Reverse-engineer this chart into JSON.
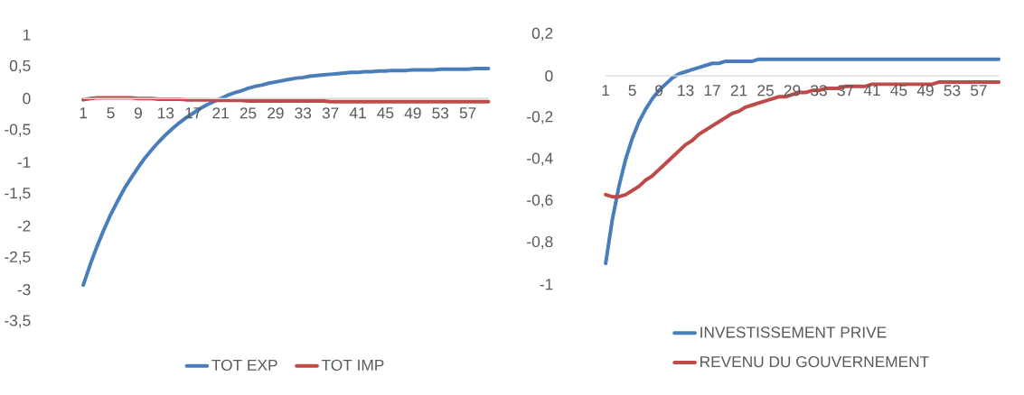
{
  "chart_data": [
    {
      "type": "line",
      "categories": [
        "1",
        null,
        null,
        null,
        "5",
        null,
        null,
        null,
        "9",
        null,
        null,
        null,
        "13",
        null,
        null,
        null,
        "17",
        null,
        null,
        null,
        "21",
        null,
        null,
        null,
        "25",
        null,
        null,
        null,
        "29",
        null,
        null,
        null,
        "33",
        null,
        null,
        null,
        "37",
        null,
        null,
        null,
        "41",
        null,
        null,
        null,
        "45",
        null,
        null,
        null,
        "49",
        null,
        null,
        null,
        "53",
        null,
        null,
        null,
        "57",
        null,
        null,
        null
      ],
      "ylim": [
        -3.5,
        1
      ],
      "yticks": [
        1,
        {
          "value": 0.5,
          "label": "0,5"
        },
        0,
        {
          "value": -0.5,
          "label": "-0,5"
        },
        -1,
        {
          "value": -1.5,
          "label": "-1,5"
        },
        -2,
        {
          "value": -2.5,
          "label": "-2,5"
        },
        -3,
        {
          "value": -3.5,
          "label": "-3,5"
        }
      ],
      "legend": "bottom",
      "series": [
        {
          "name": "TOT EXP",
          "color": "#4a7ebb",
          "values": [
            -2.93,
            -2.61,
            -2.32,
            -2.06,
            -1.82,
            -1.61,
            -1.41,
            -1.24,
            -1.08,
            -0.93,
            -0.8,
            -0.68,
            -0.57,
            -0.47,
            -0.38,
            -0.3,
            -0.23,
            -0.16,
            -0.1,
            -0.05,
            0.0,
            0.05,
            0.09,
            0.12,
            0.16,
            0.19,
            0.21,
            0.24,
            0.26,
            0.28,
            0.3,
            0.32,
            0.33,
            0.35,
            0.36,
            0.37,
            0.38,
            0.39,
            0.4,
            0.41,
            0.41,
            0.42,
            0.42,
            0.43,
            0.43,
            0.44,
            0.44,
            0.44,
            0.45,
            0.45,
            0.45,
            0.45,
            0.46,
            0.46,
            0.46,
            0.46,
            0.46,
            0.47,
            0.47,
            0.47
          ]
        },
        {
          "name": "TOT IMP",
          "color": "#be4b48",
          "values": [
            -0.02,
            0,
            0.01,
            0.01,
            0.01,
            0.01,
            0.01,
            0.01,
            0,
            0,
            0,
            -0.01,
            -0.01,
            -0.01,
            -0.01,
            -0.02,
            -0.02,
            -0.02,
            -0.02,
            -0.03,
            -0.03,
            -0.03,
            -0.03,
            -0.03,
            -0.04,
            -0.04,
            -0.04,
            -0.04,
            -0.04,
            -0.04,
            -0.04,
            -0.04,
            -0.04,
            -0.04,
            -0.04,
            -0.04,
            -0.05,
            -0.05,
            -0.05,
            -0.05,
            -0.05,
            -0.05,
            -0.05,
            -0.05,
            -0.05,
            -0.05,
            -0.05,
            -0.05,
            -0.05,
            -0.05,
            -0.05,
            -0.05,
            -0.05,
            -0.05,
            -0.05,
            -0.05,
            -0.05,
            -0.05,
            -0.05,
            -0.05
          ]
        }
      ]
    },
    {
      "type": "line",
      "categories": [
        "1",
        null,
        null,
        null,
        "5",
        null,
        null,
        null,
        "9",
        null,
        null,
        null,
        "13",
        null,
        null,
        null,
        "17",
        null,
        null,
        null,
        "21",
        null,
        null,
        null,
        "25",
        null,
        null,
        null,
        "29",
        null,
        null,
        null,
        "33",
        null,
        null,
        null,
        "37",
        null,
        null,
        null,
        "41",
        null,
        null,
        null,
        "45",
        null,
        null,
        null,
        "49",
        null,
        null,
        null,
        "53",
        null,
        null,
        null,
        "57",
        null,
        null,
        null
      ],
      "ylim": [
        -1,
        0.2
      ],
      "yticks": [
        {
          "value": 0.2,
          "label": "0,2"
        },
        0,
        {
          "value": -0.2,
          "label": "-0,2"
        },
        {
          "value": -0.4,
          "label": "-0,4"
        },
        {
          "value": -0.6,
          "label": "-0,6"
        },
        {
          "value": -0.8,
          "label": "-0,8"
        },
        -1
      ],
      "legend": "bottom",
      "series": [
        {
          "name": "INVESTISSEMENT PRIVE",
          "color": "#4a7ebb",
          "values": [
            -0.9,
            -0.69,
            -0.53,
            -0.4,
            -0.3,
            -0.22,
            -0.16,
            -0.11,
            -0.07,
            -0.04,
            -0.01,
            0.01,
            0.02,
            0.03,
            0.04,
            0.05,
            0.06,
            0.06,
            0.07,
            0.07,
            0.07,
            0.07,
            0.07,
            0.08,
            0.08,
            0.08,
            0.08,
            0.08,
            0.08,
            0.08,
            0.08,
            0.08,
            0.08,
            0.08,
            0.08,
            0.08,
            0.08,
            0.08,
            0.08,
            0.08,
            0.08,
            0.08,
            0.08,
            0.08,
            0.08,
            0.08,
            0.08,
            0.08,
            0.08,
            0.08,
            0.08,
            0.08,
            0.08,
            0.08,
            0.08,
            0.08,
            0.08,
            0.08,
            0.08,
            0.08
          ]
        },
        {
          "name": "REVENU DU GOUVERNEMENT",
          "color": "#be4b48",
          "values": [
            -0.57,
            -0.58,
            -0.58,
            -0.57,
            -0.55,
            -0.53,
            -0.5,
            -0.48,
            -0.45,
            -0.42,
            -0.39,
            -0.36,
            -0.33,
            -0.31,
            -0.28,
            -0.26,
            -0.24,
            -0.22,
            -0.2,
            -0.18,
            -0.17,
            -0.15,
            -0.14,
            -0.13,
            -0.12,
            -0.11,
            -0.1,
            -0.1,
            -0.09,
            -0.08,
            -0.08,
            -0.07,
            -0.07,
            -0.06,
            -0.06,
            -0.06,
            -0.05,
            -0.05,
            -0.05,
            -0.05,
            -0.04,
            -0.04,
            -0.04,
            -0.04,
            -0.04,
            -0.04,
            -0.04,
            -0.04,
            -0.04,
            -0.04,
            -0.03,
            -0.03,
            -0.03,
            -0.03,
            -0.03,
            -0.03,
            -0.03,
            -0.03,
            -0.03,
            -0.03
          ]
        }
      ]
    }
  ]
}
